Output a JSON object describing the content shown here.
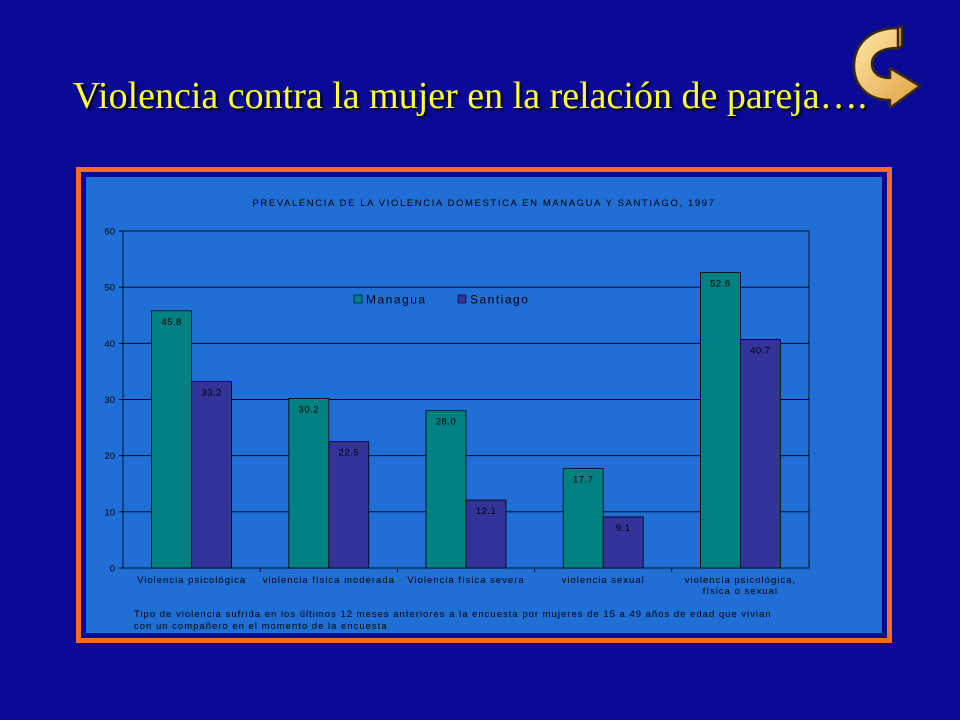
{
  "slide": {
    "title": "Violencia contra la mujer en la relación de pareja…."
  },
  "icons": {
    "nav": "curved-arrow-return-icon"
  },
  "colors": {
    "background": "#0a0a96",
    "title": "#ffff33",
    "frame": "#ff6a1f",
    "panel": "#1f6fd6",
    "plot": "#1f6fd6"
  },
  "chart_data": {
    "type": "bar",
    "title": "PREVALENCIA DE LA VIOLENCIA DOMESTICA EN MANAGUA Y SANTIAGO, 1997",
    "categories": [
      [
        "Violencia psicológica"
      ],
      [
        "violencia física moderada"
      ],
      [
        "Violencia física severa"
      ],
      [
        "violencia sexual"
      ],
      [
        "violencia psicológica,",
        "física o sexual"
      ]
    ],
    "series": [
      {
        "name": "Managua",
        "values": [
          45.8,
          30.2,
          28.0,
          17.7,
          52.6
        ],
        "labels": [
          "45.8",
          "30.2",
          "28.0",
          "17.7",
          "52.6"
        ],
        "color": "#008080"
      },
      {
        "name": "Santiago",
        "values": [
          33.2,
          22.5,
          12.1,
          9.1,
          40.7
        ],
        "labels": [
          "33.2",
          "22.5",
          "12.1",
          "9.1",
          "40.7"
        ],
        "color": "#333399"
      }
    ],
    "ylim": [
      0,
      60
    ],
    "yticks": [
      0,
      10,
      20,
      30,
      40,
      50,
      60
    ],
    "grid": true,
    "legend": "top-center",
    "note": [
      "Tipo de violencia sufrida en los últimos 12 meses anteriores a la encuesta por mujeres de 15 a 49 años de edad que vivian",
      "con un compañero en el momento de la encuesta"
    ]
  }
}
